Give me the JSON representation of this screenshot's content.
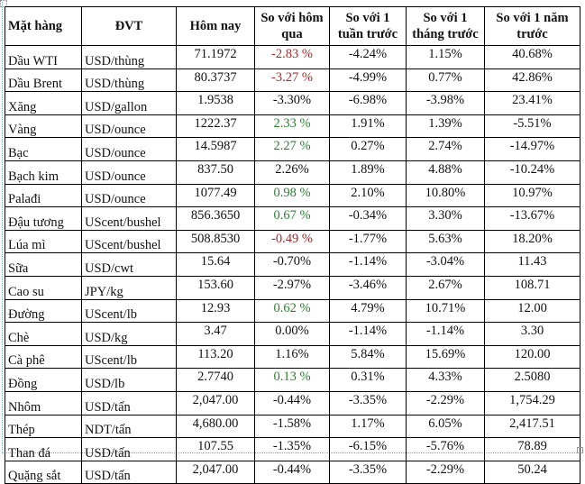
{
  "headers": [
    "Mặt hàng",
    "ĐVT",
    "Hôm nay",
    "So với hôm qua",
    "So với 1 tuần trước",
    "So với 1 tháng trước",
    "So với 1 năm trước"
  ],
  "colors": {
    "negative": "#a52a2a",
    "positive": "#2e7d32",
    "text": "#111111"
  },
  "rows": [
    {
      "name": "Dầu WTI",
      "unit": "USD/thùng",
      "today": "71.1972",
      "day": "-2.83 %",
      "day_color": "neg",
      "week": "-4.24%",
      "month": "1.15%",
      "year": "40.68%"
    },
    {
      "name": "Dầu Brent",
      "unit": "USD/thùng",
      "today": "80.3737",
      "day": "-3.27 %",
      "day_color": "neg",
      "week": "-4.99%",
      "month": "0.77%",
      "year": "42.86%"
    },
    {
      "name": "Xăng",
      "unit": "USD/gallon",
      "today": "1.9538",
      "day": "-3.30%",
      "day_color": "",
      "week": "-6.98%",
      "month": "-3.98%",
      "year": "23.41%"
    },
    {
      "name": "Vàng",
      "unit": "USD/ounce",
      "today": "1222.37",
      "day": "2.33 %",
      "day_color": "pos",
      "week": "1.91%",
      "month": "1.39%",
      "year": "-5.51%"
    },
    {
      "name": "Bạc",
      "unit": "USD/ounce",
      "today": "14.5987",
      "day": "2.27 %",
      "day_color": "pos",
      "week": "0.27%",
      "month": "2.74%",
      "year": "-14.97%"
    },
    {
      "name": "Bạch kim",
      "unit": "USD/ounce",
      "today": "837.50",
      "day": "2.26%",
      "day_color": "",
      "week": "1.89%",
      "month": "4.88%",
      "year": "-10.24%"
    },
    {
      "name": "Palađi",
      "unit": "USD/ounce",
      "today": "1077.49",
      "day": "0.98 %",
      "day_color": "pos",
      "week": "2.10%",
      "month": "10.80%",
      "year": "10.97%"
    },
    {
      "name": "Đậu tương",
      "unit": "UScent/bushel",
      "today": "856.3650",
      "day": "0.67 %",
      "day_color": "pos",
      "week": "-0.34%",
      "month": "3.30%",
      "year": "-13.67%"
    },
    {
      "name": "Lúa mì",
      "unit": "UScent/bushel",
      "today": "508.8530",
      "day": "-0.49 %",
      "day_color": "neg",
      "week": "-1.77%",
      "month": "5.63%",
      "year": "18.20%"
    },
    {
      "name": "Sữa",
      "unit": "USD/cwt",
      "today": "15.64",
      "day": "-0.70%",
      "day_color": "",
      "week": "-1.14%",
      "month": "-3.04%",
      "year": "11.43"
    },
    {
      "name": "Cao su",
      "unit": "JPY/kg",
      "today": "153.60",
      "day": "-2.97%",
      "day_color": "",
      "week": "-3.46%",
      "month": "2.67%",
      "year": "108.71"
    },
    {
      "name": "Đường",
      "unit": "UScent/lb",
      "today": "12.93",
      "day": "0.62 %",
      "day_color": "pos",
      "week": "4.79%",
      "month": "10.71%",
      "year": "12.00"
    },
    {
      "name": "Chè",
      "unit": "USD/kg",
      "today": "3.47",
      "day": "0.00%",
      "day_color": "",
      "week": "-1.14%",
      "month": "-1.14%",
      "year": "3.30"
    },
    {
      "name": "Cà phê",
      "unit": "UScent/lb",
      "today": "113.20",
      "day": "1.16%",
      "day_color": "",
      "week": "5.84%",
      "month": "15.69%",
      "year": "120.00"
    },
    {
      "name": "Đồng",
      "unit": "USD/lb",
      "today": "2.7740",
      "day": "0.13 %",
      "day_color": "pos",
      "week": "0.31%",
      "month": "4.33%",
      "year": "2.5080"
    },
    {
      "name": "Nhôm",
      "unit": "USD/tấn",
      "today": "2,047.00",
      "day": "-0.44%",
      "day_color": "",
      "week": "-3.35%",
      "month": "-2.29%",
      "year": "1,754.29"
    },
    {
      "name": "Thép",
      "unit": "NDT/tấn",
      "today": "4,680.00",
      "day": "-1.58%",
      "day_color": "",
      "week": "1.17%",
      "month": "6.05%",
      "year": "2,417.51"
    },
    {
      "name": "Than đá",
      "unit": "USD/tấn",
      "today": "107.55",
      "day": "-1.35%",
      "day_color": "",
      "week": "-6.15%",
      "month": "-5.76%",
      "year": "78.89"
    },
    {
      "name": "Quặng sắt",
      "unit": "USD/tấn",
      "today": "2,047.00",
      "day": "-0.44%",
      "day_color": "",
      "week": "-3.35%",
      "month": "-2.29%",
      "year": "50.24"
    }
  ]
}
